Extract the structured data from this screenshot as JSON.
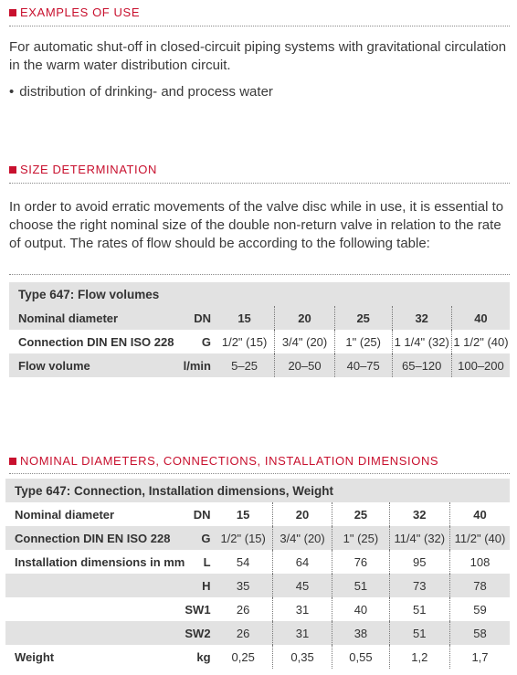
{
  "sections": {
    "examples": {
      "heading": "EXAMPLES OF USE",
      "text": "For automatic shut-off in closed-circuit piping systems with gravitational circulation in the warm water distribution circuit.",
      "bullet": "distribution of drinking- and process water"
    },
    "size": {
      "heading": "SIZE DETERMINATION",
      "text": "In order to avoid erratic movements of the valve disc while in use, it is essential to choose the right nominal size of the double non-return valve in relation to the rate of output. The rates of flow should be according to the following table:"
    },
    "nominal": {
      "heading": "NOMINAL DIAMETERS, CONNECTIONS, INSTALLATION DIMENSIONS"
    }
  },
  "table1": {
    "title": "Type 647: Flow volumes",
    "rows": [
      {
        "label": "Nominal diameter",
        "unit": "DN",
        "values": [
          "15",
          "20",
          "25",
          "32",
          "40"
        ]
      },
      {
        "label": "Connection DIN EN ISO 228",
        "unit": "G",
        "values": [
          "1/2\" (15)",
          "3/4\" (20)",
          "1\" (25)",
          "1 1/4\" (32)",
          "1 1/2\" (40)"
        ]
      },
      {
        "label": "Flow volume",
        "unit": "l/min",
        "values": [
          "5–25",
          "20–50",
          "40–75",
          "65–120",
          "100–200"
        ]
      }
    ]
  },
  "table2": {
    "title": "Type 647: Connection, Installation dimensions, Weight",
    "rows": [
      {
        "label": "Nominal diameter",
        "unit": "DN",
        "values": [
          "15",
          "20",
          "25",
          "32",
          "40"
        ]
      },
      {
        "label": "Connection DIN EN ISO 228",
        "unit": "G",
        "values": [
          "1/2\" (15)",
          "3/4\" (20)",
          "1\" (25)",
          "11/4\" (32)",
          "11/2\" (40)"
        ]
      },
      {
        "label": "Installation dimensions in mm",
        "unit": "L",
        "values": [
          "54",
          "64",
          "76",
          "95",
          "108"
        ]
      },
      {
        "label": "",
        "unit": "H",
        "values": [
          "35",
          "45",
          "51",
          "73",
          "78"
        ]
      },
      {
        "label": "",
        "unit": "SW1",
        "values": [
          "26",
          "31",
          "40",
          "51",
          "59"
        ]
      },
      {
        "label": "",
        "unit": "SW2",
        "values": [
          "26",
          "31",
          "38",
          "51",
          "58"
        ]
      },
      {
        "label": "Weight",
        "unit": "kg",
        "values": [
          "0,25",
          "0,35",
          "0,55",
          "1,2",
          "1,7"
        ]
      }
    ]
  }
}
